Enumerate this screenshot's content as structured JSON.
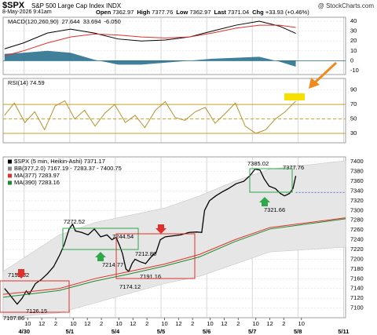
{
  "header": {
    "symbol": "$SPX",
    "name": "S&P 500 Large Cap Index INDX",
    "brand": "@ StockCharts.com",
    "date": "8-May-2026 9:41am",
    "quote": [
      [
        "Open",
        "7362.97"
      ],
      [
        "High",
        "7377.76"
      ],
      [
        "Low",
        "7362.97"
      ],
      [
        "Last",
        "7371.04"
      ],
      [
        "Chg",
        "+33.93 (+0.46%)"
      ]
    ]
  },
  "chart_data": [
    {
      "type": "line",
      "title": "MACD(120,260,90)",
      "title_values": [
        {
          "text": "27.644",
          "color": "#000000"
        },
        {
          "text": "33.694",
          "color": "#e0302b"
        },
        {
          "text": "-6.050",
          "color": "#1f6a8a"
        }
      ],
      "xlim": [
        -3,
        45.8
      ],
      "ylim": [
        -14,
        44
      ],
      "yticks": [
        -10,
        0,
        10,
        20,
        30,
        40
      ],
      "grid": true,
      "series": [
        {
          "name": "Histogram",
          "kind": "area",
          "color": "#1f6a8a",
          "x": [
            -2.8,
            -0.1,
            3.3,
            6.6,
            10.0,
            13.4,
            16.7,
            20.1,
            23.5,
            26.8,
            30.2,
            33.5,
            36.4,
            38.7
          ],
          "values": [
            7,
            8,
            10,
            8,
            1,
            -4,
            -4,
            -2,
            0,
            2,
            3,
            4,
            -1,
            -6.05
          ]
        },
        {
          "name": "MACD",
          "kind": "line",
          "color": "#000000",
          "x": [
            -2.8,
            -0.1,
            3.3,
            6.6,
            10.0,
            13.4,
            16.7,
            20.1,
            23.5,
            26.8,
            30.2,
            33.5,
            36.4,
            38.7
          ],
          "values": [
            12,
            18,
            28,
            32,
            28,
            22,
            20,
            21,
            24,
            30,
            36,
            40,
            35,
            27.644
          ]
        },
        {
          "name": "Signal",
          "kind": "line",
          "color": "#e0302b",
          "x": [
            -2.8,
            -0.1,
            3.3,
            6.6,
            10.0,
            13.4,
            16.7,
            20.1,
            23.5,
            26.8,
            30.2,
            33.5,
            36.4,
            38.7
          ],
          "values": [
            5,
            10,
            18,
            24,
            27,
            26,
            24,
            23,
            24,
            28,
            33,
            36,
            36,
            33.694
          ]
        }
      ]
    },
    {
      "type": "line",
      "title": "RSI(14) 74.59",
      "xlim": [
        -3,
        45.8
      ],
      "ylim": [
        17,
        106
      ],
      "yticks": [
        30,
        50,
        70,
        90
      ],
      "grid": true,
      "levels": [
        70,
        50,
        30
      ],
      "level_color": "#c9a227",
      "series": [
        {
          "name": "RSI",
          "kind": "line",
          "color": "#b8922a",
          "x": [
            -2.8,
            -1.4,
            0.1,
            1.5,
            2.9,
            4.4,
            5.8,
            7.2,
            8.6,
            10.1,
            11.5,
            12.9,
            14.4,
            15.8,
            17.2,
            18.7,
            20.1,
            21.5,
            22.9,
            24.4,
            25.8,
            27.2,
            28.7,
            30.1,
            31.5,
            33.0,
            34.4,
            35.8,
            37.2,
            38.7
          ],
          "values": [
            55,
            72,
            45,
            60,
            35,
            68,
            75,
            50,
            62,
            40,
            58,
            70,
            45,
            55,
            38,
            62,
            74,
            52,
            48,
            60,
            66,
            44,
            58,
            72,
            40,
            30,
            35,
            50,
            60,
            74.59
          ]
        }
      ]
    },
    {
      "type": "line",
      "xlim": [
        -3,
        45.8
      ],
      "ylim": [
        7080,
        7410
      ],
      "yticks": [
        7100,
        7120,
        7140,
        7160,
        7180,
        7200,
        7220,
        7240,
        7260,
        7280,
        7300,
        7320,
        7340,
        7360,
        7380,
        7400
      ],
      "grid": true,
      "xticks": [
        {
          "value": 0.5,
          "label": "10"
        },
        {
          "value": 2.5,
          "label": "12"
        },
        {
          "value": 4.5,
          "label": "2"
        },
        {
          "value": 7.0,
          "label": "10"
        },
        {
          "value": 9.0,
          "label": "12"
        },
        {
          "value": 11.0,
          "label": "2"
        },
        {
          "value": 13.5,
          "label": "10"
        },
        {
          "value": 15.5,
          "label": "12"
        },
        {
          "value": 17.5,
          "label": "2"
        },
        {
          "value": 20.0,
          "label": "10"
        },
        {
          "value": 22.0,
          "label": "12"
        },
        {
          "value": 24.0,
          "label": "2"
        },
        {
          "value": 26.5,
          "label": "10"
        },
        {
          "value": 28.5,
          "label": "12"
        },
        {
          "value": 30.5,
          "label": "2"
        },
        {
          "value": 33.0,
          "label": "10"
        },
        {
          "value": 35.0,
          "label": "12"
        },
        {
          "value": 37.0,
          "label": "2"
        },
        {
          "value": 39.5,
          "label": "10"
        }
      ],
      "xticks_major": [
        {
          "value": 0,
          "label": "4/30"
        },
        {
          "value": 6.5,
          "label": "5/1"
        },
        {
          "value": 13,
          "label": "5/4"
        },
        {
          "value": 19.5,
          "label": "5/5"
        },
        {
          "value": 26,
          "label": "5/6"
        },
        {
          "value": 32.5,
          "label": "5/7"
        },
        {
          "value": 39,
          "label": "5/8"
        },
        {
          "value": 45.5,
          "label": "5/11"
        }
      ],
      "band": {
        "name": "BB(377,2.0) 7167.19 - 7283.37 - 7400.75",
        "color": "#e6e6e6",
        "x": [
          -3,
          5,
          10,
          15,
          20,
          25,
          30,
          35,
          45.8
        ],
        "upper": [
          7175,
          7250,
          7275,
          7290,
          7305,
          7330,
          7360,
          7385,
          7402
        ],
        "lower": [
          7080,
          7090,
          7110,
          7130,
          7150,
          7165,
          7190,
          7215,
          7225
        ]
      },
      "series": [
        {
          "name": "$SPX (5 min, Heikin-Ashi) 7371.17",
          "kind": "line",
          "color": "#000000",
          "x": [
            -2.8,
            -2.1,
            -1.4,
            -1.0,
            -0.3,
            0.3,
            0.7,
            1.6,
            2.4,
            3.3,
            4.2,
            5.1,
            5.7,
            6.4,
            6.9,
            7.3,
            8.2,
            9.1,
            10.0,
            10.9,
            11.8,
            12.5,
            13.1,
            13.6,
            14.0,
            14.5,
            14.9,
            15.4,
            15.8,
            16.5,
            17.3,
            18.1,
            18.8,
            19.4,
            20.1,
            21.2,
            22.3,
            23.5,
            24.6,
            25.3,
            25.7,
            26.4,
            27.3,
            28.2,
            29.1,
            30.2,
            31.3,
            32.2,
            32.9,
            33.6,
            34.2,
            34.9,
            35.8,
            36.5,
            37.1,
            37.8,
            38.3,
            38.7
          ],
          "values": [
            7140,
            7128,
            7115,
            7108,
            7120,
            7135,
            7128,
            7150,
            7158,
            7170,
            7185,
            7210,
            7230,
            7262,
            7272,
            7258,
            7255,
            7250,
            7262,
            7246,
            7250,
            7240,
            7245,
            7228,
            7212,
            7180,
            7175,
            7192,
            7200,
            7195,
            7191,
            7205,
            7214,
            7240,
            7246,
            7248,
            7250,
            7255,
            7256,
            7255,
            7300,
            7320,
            7330,
            7338,
            7345,
            7355,
            7360,
            7372,
            7385,
            7383,
            7365,
            7350,
            7345,
            7335,
            7330,
            7335,
            7345,
            7371
          ]
        },
        {
          "name": "MA(377) 7283.97",
          "kind": "line",
          "color": "#e0302b",
          "x": [
            -3,
            5,
            10,
            15,
            20,
            25,
            30,
            35,
            45.8
          ],
          "values": [
            7128,
            7140,
            7160,
            7175,
            7190,
            7210,
            7240,
            7265,
            7285
          ]
        },
        {
          "name": "MA(390) 7283.16",
          "kind": "line",
          "color": "#1e8a2e",
          "x": [
            -3,
            5,
            10,
            15,
            20,
            25,
            30,
            35,
            45.8
          ],
          "values": [
            7122,
            7136,
            7155,
            7170,
            7186,
            7205,
            7236,
            7262,
            7283
          ]
        }
      ],
      "prev_close": {
        "value": 7337.11,
        "color": "#3344ee"
      },
      "annotations": [
        "7152.52",
        "7107.86",
        "7126.15",
        "7272.52",
        "7244.54",
        "7214.77",
        "7212.80",
        "7191.16",
        "7174.12",
        "7385.02",
        "7377.76",
        "7321.66"
      ]
    }
  ]
}
